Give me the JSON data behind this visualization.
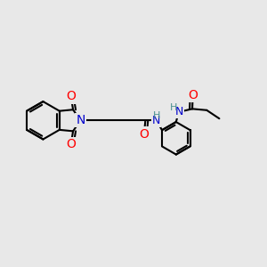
{
  "background_color": "#e8e8e8",
  "bond_color": "#000000",
  "bond_width": 1.5,
  "atom_colors": {
    "O": "#ff0000",
    "N": "#0000cd",
    "H": "#4a9090",
    "C": "#000000"
  },
  "font_size": 9,
  "figsize": [
    3.0,
    3.0
  ],
  "dpi": 100
}
